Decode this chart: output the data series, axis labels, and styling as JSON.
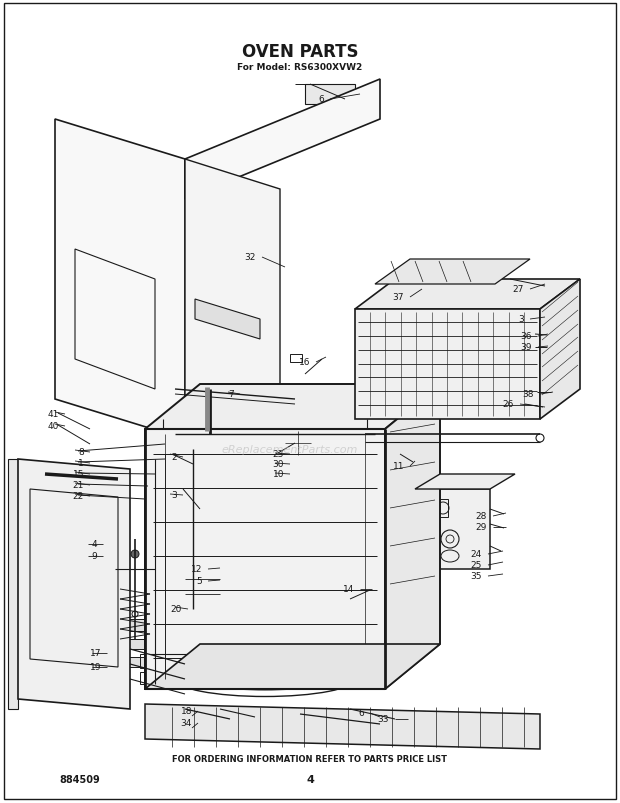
{
  "title": "OVEN PARTS",
  "subtitle": "For Model: RS6300XVW2",
  "footer_text": "FOR ORDERING INFORMATION REFER TO PARTS PRICE LIST",
  "bottom_left": "884509",
  "bottom_center": "4",
  "bg": "#ffffff",
  "lc": "#1a1a1a",
  "wm_color": "#c8c8c8",
  "title_fs": 11,
  "sub_fs": 6.5,
  "label_fs": 6.5,
  "footer_fs": 6,
  "bl_fs": 7,
  "bc_fs": 8
}
